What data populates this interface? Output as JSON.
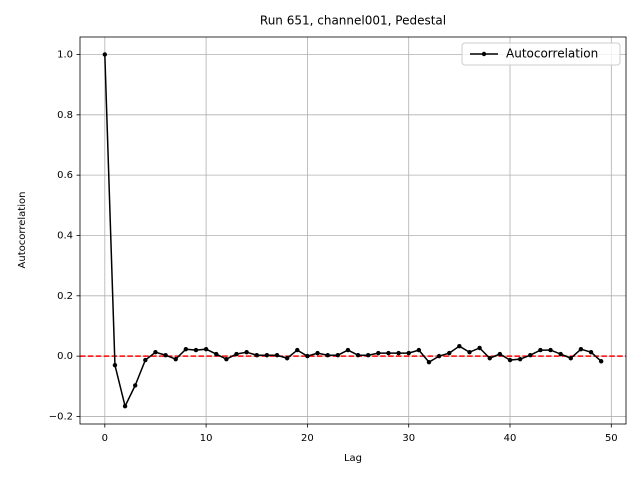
{
  "chart_data": {
    "type": "line",
    "title": "Run 651, channel001, Pedestal",
    "xlabel": "Lag",
    "ylabel": "Autocorrelation",
    "x": [
      0,
      1,
      2,
      3,
      4,
      5,
      6,
      7,
      8,
      9,
      10,
      11,
      12,
      13,
      14,
      15,
      16,
      17,
      18,
      19,
      20,
      21,
      22,
      23,
      24,
      25,
      26,
      27,
      28,
      29,
      30,
      31,
      32,
      33,
      34,
      35,
      36,
      37,
      38,
      39,
      40,
      41,
      42,
      43,
      44,
      45,
      46,
      47,
      48,
      49
    ],
    "series": [
      {
        "name": "Autocorrelation",
        "color": "#000000",
        "values": [
          1.0,
          -0.03,
          -0.166,
          -0.097,
          -0.013,
          0.013,
          0.003,
          -0.01,
          0.023,
          0.02,
          0.023,
          0.007,
          -0.01,
          0.007,
          0.013,
          0.003,
          0.003,
          0.003,
          -0.007,
          0.02,
          0.0,
          0.01,
          0.003,
          0.003,
          0.02,
          0.003,
          0.003,
          0.01,
          0.01,
          0.01,
          0.01,
          0.02,
          -0.02,
          0.0,
          0.01,
          0.033,
          0.013,
          0.027,
          -0.007,
          0.007,
          -0.013,
          -0.01,
          0.003,
          0.02,
          0.02,
          0.007,
          -0.007,
          0.023,
          0.013,
          -0.017
        ]
      }
    ],
    "hline": {
      "value": 0,
      "color": "#ff0000"
    },
    "xlim": [
      -2.45,
      51.45
    ],
    "xticks": [
      0,
      10,
      20,
      30,
      40,
      50
    ],
    "ylim": [
      -0.225,
      1.058
    ],
    "yticks": [
      {
        "value": -0.2,
        "label": "−0.2"
      },
      {
        "value": 0,
        "label": "0.0"
      },
      {
        "value": 0.2,
        "label": "0.2"
      },
      {
        "value": 0.4,
        "label": "0.4"
      },
      {
        "value": 0.6,
        "label": "0.6"
      },
      {
        "value": 0.8,
        "label": "0.8"
      },
      {
        "value": 1.0,
        "label": "1.0"
      }
    ],
    "grid": true,
    "legend": "upper-right"
  }
}
